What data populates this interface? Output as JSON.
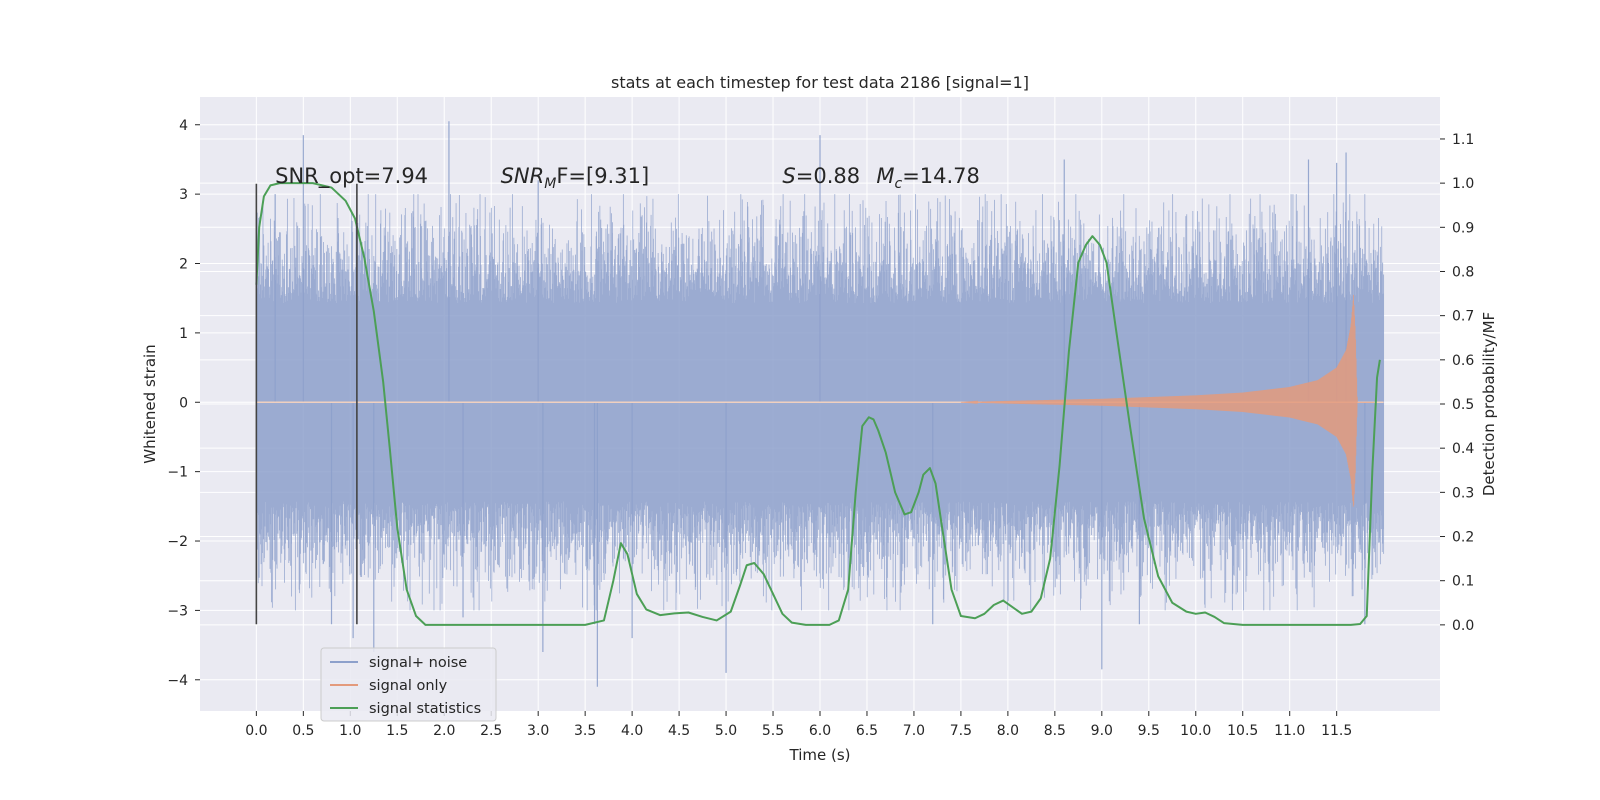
{
  "chart_data": {
    "type": "line",
    "title": "stats at each timestep for test data 2186 [signal=1]",
    "xlabel": "Time (s)",
    "ylabel": "Whitened strain",
    "y2label": "Detection probability/MF",
    "xlim": [
      -0.6,
      12.6
    ],
    "ylim": [
      -4.45,
      4.4
    ],
    "y2lim": [
      -0.195,
      1.195
    ],
    "grid": true,
    "legend_position": "lower-left",
    "x_ticks": [
      0.0,
      0.5,
      1.0,
      1.5,
      2.0,
      2.5,
      3.0,
      3.5,
      4.0,
      4.5,
      5.0,
      5.5,
      6.0,
      6.5,
      7.0,
      7.5,
      8.0,
      8.5,
      9.0,
      9.5,
      10.0,
      10.5,
      11.0,
      11.5
    ],
    "x_tick_labels": [
      "0.0",
      "0.5",
      "1.0",
      "1.5",
      "2.0",
      "2.5",
      "3.0",
      "3.5",
      "4.0",
      "4.5",
      "5.0",
      "5.5",
      "6.0",
      "6.5",
      "7.0",
      "7.5",
      "8.0",
      "8.5",
      "9.0",
      "9.5",
      "10.0",
      "10.5",
      "11.0",
      "11.5"
    ],
    "y_ticks": [
      4,
      3,
      2,
      1,
      0,
      -1,
      -2,
      -3,
      -4
    ],
    "y_tick_labels": [
      "4",
      "3",
      "2",
      "1",
      "0",
      "−1",
      "−2",
      "−3",
      "−4"
    ],
    "y2_ticks": [
      1.1,
      1.0,
      0.9,
      0.8,
      0.7,
      0.6,
      0.5,
      0.4,
      0.3,
      0.2,
      0.1,
      0.0
    ],
    "y2_tick_labels": [
      "1.1",
      "1.0",
      "0.9",
      "0.8",
      "0.7",
      "0.6",
      "0.5",
      "0.4",
      "0.3",
      "0.2",
      "0.1",
      "0.0"
    ],
    "colors": {
      "background": "#eaeaf2",
      "grid": "#ffffff",
      "noise": "#8da0cb",
      "signal": "#e39a7c",
      "stats": "#4c9f56",
      "markers": "#444444"
    },
    "annotations": [
      {
        "text": "SNR_opt=7.94",
        "x": 0.2
      },
      {
        "text": "SNR",
        "sub": "M",
        "suffix": "F=[9.31]",
        "x": 2.6
      },
      {
        "text": "S",
        "suffix": "=0.88",
        "x": 5.6
      },
      {
        "text": "M",
        "sub": "c",
        "suffix": "=14.78",
        "x": 6.6
      }
    ],
    "vertical_markers": [
      0.0,
      1.07
    ],
    "series": [
      {
        "name": "signal+ noise",
        "kind": "noise",
        "x_range": [
          0.0,
          12.0
        ],
        "envelope_abs": 2.6,
        "peaks": [
          {
            "x": 0.2,
            "y": 3.0
          },
          {
            "x": 0.5,
            "y": 3.85
          },
          {
            "x": 0.8,
            "y": -3.2
          },
          {
            "x": 1.03,
            "y": -3.4
          },
          {
            "x": 1.25,
            "y": -3.6
          },
          {
            "x": 2.05,
            "y": 4.05
          },
          {
            "x": 2.2,
            "y": -3.1
          },
          {
            "x": 3.0,
            "y": 3.2
          },
          {
            "x": 3.05,
            "y": -3.6
          },
          {
            "x": 3.6,
            "y": -3.2
          },
          {
            "x": 3.63,
            "y": -4.1
          },
          {
            "x": 4.0,
            "y": -3.4
          },
          {
            "x": 5.0,
            "y": -3.9
          },
          {
            "x": 6.0,
            "y": 3.85
          },
          {
            "x": 7.2,
            "y": -3.2
          },
          {
            "x": 8.6,
            "y": 3.5
          },
          {
            "x": 9.0,
            "y": -3.85
          },
          {
            "x": 9.4,
            "y": -3.2
          },
          {
            "x": 11.2,
            "y": 3.5
          },
          {
            "x": 11.5,
            "y": 3.45
          },
          {
            "x": 11.6,
            "y": 3.6
          },
          {
            "x": 11.8,
            "y": -3.2
          }
        ]
      },
      {
        "name": "signal only",
        "kind": "chirp",
        "x_range": [
          7.5,
          11.9
        ],
        "amplitude": [
          [
            7.5,
            0.0
          ],
          [
            8.0,
            0.02
          ],
          [
            9.0,
            0.05
          ],
          [
            10.0,
            0.1
          ],
          [
            10.5,
            0.14
          ],
          [
            11.0,
            0.22
          ],
          [
            11.3,
            0.32
          ],
          [
            11.5,
            0.5
          ],
          [
            11.6,
            0.75
          ],
          [
            11.65,
            1.1
          ],
          [
            11.68,
            1.55
          ],
          [
            11.7,
            1.0
          ],
          [
            11.72,
            0.0
          ]
        ]
      },
      {
        "name": "signal statistics",
        "kind": "line",
        "axis": "right",
        "x": [
          0.0,
          0.03,
          0.08,
          0.15,
          0.25,
          0.35,
          0.6,
          0.8,
          0.95,
          1.05,
          1.15,
          1.25,
          1.35,
          1.42,
          1.5,
          1.6,
          1.7,
          1.8,
          2.0,
          3.0,
          3.5,
          3.7,
          3.8,
          3.88,
          3.95,
          4.05,
          4.15,
          4.3,
          4.45,
          4.6,
          4.75,
          4.9,
          5.05,
          5.15,
          5.22,
          5.3,
          5.4,
          5.5,
          5.6,
          5.7,
          5.85,
          6.1,
          6.2,
          6.3,
          6.38,
          6.45,
          6.52,
          6.57,
          6.62,
          6.7,
          6.8,
          6.9,
          6.97,
          7.05,
          7.1,
          7.17,
          7.23,
          7.3,
          7.4,
          7.5,
          7.65,
          7.75,
          7.85,
          7.95,
          8.05,
          8.15,
          8.25,
          8.35,
          8.45,
          8.55,
          8.65,
          8.75,
          8.83,
          8.9,
          8.98,
          9.05,
          9.15,
          9.3,
          9.45,
          9.6,
          9.75,
          9.9,
          10.0,
          10.1,
          10.2,
          10.3,
          10.5,
          11.0,
          11.5,
          11.65,
          11.75,
          11.82,
          11.88,
          11.93,
          11.96
        ],
        "y": [
          0.77,
          0.9,
          0.97,
          0.995,
          1.0,
          1.0,
          1.0,
          0.99,
          0.96,
          0.92,
          0.83,
          0.71,
          0.55,
          0.4,
          0.22,
          0.08,
          0.02,
          0.0,
          0.0,
          0.0,
          0.0,
          0.01,
          0.1,
          0.185,
          0.16,
          0.07,
          0.035,
          0.022,
          0.026,
          0.028,
          0.018,
          0.01,
          0.03,
          0.09,
          0.135,
          0.14,
          0.115,
          0.07,
          0.025,
          0.005,
          0.0,
          0.0,
          0.01,
          0.08,
          0.3,
          0.45,
          0.47,
          0.465,
          0.44,
          0.39,
          0.3,
          0.25,
          0.255,
          0.3,
          0.34,
          0.355,
          0.32,
          0.22,
          0.08,
          0.02,
          0.015,
          0.025,
          0.045,
          0.055,
          0.04,
          0.025,
          0.03,
          0.06,
          0.15,
          0.36,
          0.62,
          0.82,
          0.86,
          0.88,
          0.86,
          0.82,
          0.67,
          0.45,
          0.24,
          0.11,
          0.05,
          0.03,
          0.025,
          0.028,
          0.018,
          0.004,
          0.0,
          0.0,
          0.0,
          0.0,
          0.002,
          0.02,
          0.35,
          0.56,
          0.6
        ]
      }
    ]
  }
}
